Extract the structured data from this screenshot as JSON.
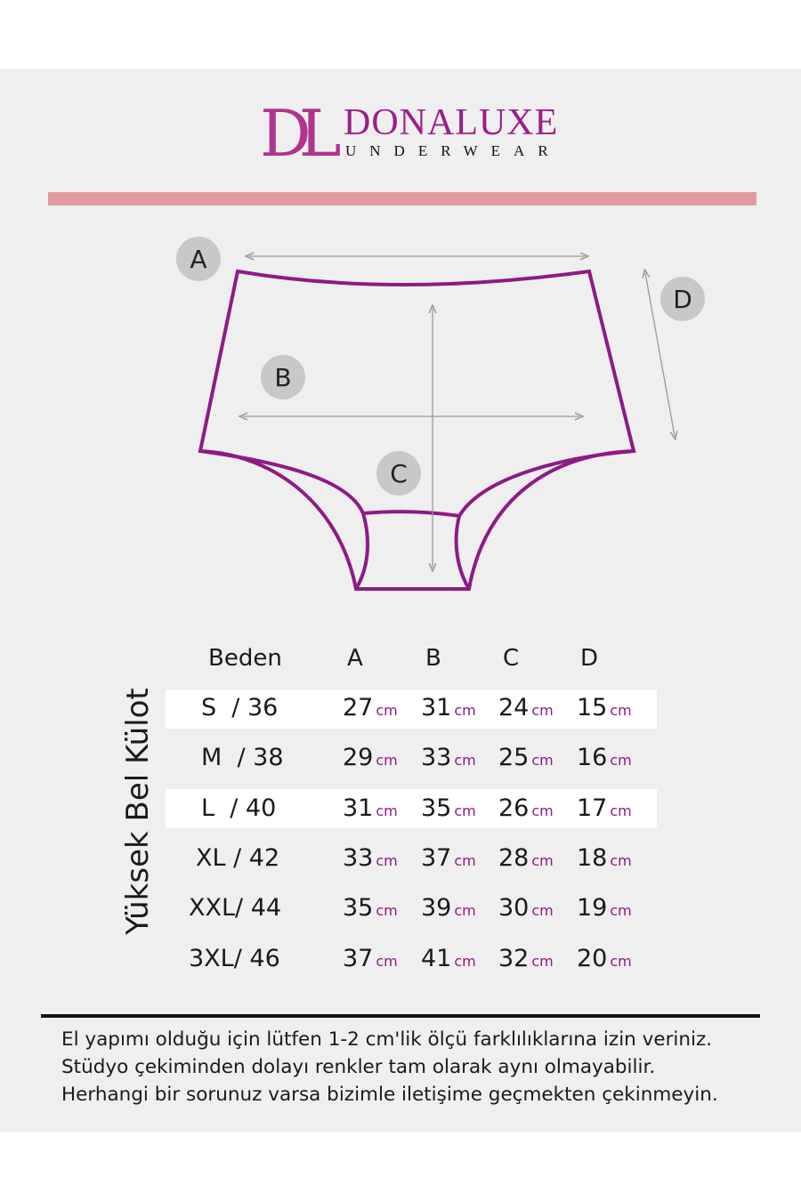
{
  "brand": {
    "monogram": "DL",
    "name": "DONALUXE",
    "tagline": "UNDERWEAR",
    "color": "#9a1f8a"
  },
  "diagram": {
    "labels": [
      "A",
      "B",
      "C",
      "D"
    ],
    "outline_color": "#8e1a85"
  },
  "table": {
    "title": "Yüksek Bel Külot",
    "headers": [
      "Beden",
      "A",
      "B",
      "C",
      "D"
    ],
    "unit": "cm",
    "rows": [
      {
        "size": "S  / 36",
        "values": [
          "27",
          "31",
          "24",
          "15"
        ]
      },
      {
        "size": "M  / 38",
        "values": [
          "29",
          "33",
          "25",
          "16"
        ]
      },
      {
        "size": "L  / 40",
        "values": [
          "31",
          "35",
          "26",
          "17"
        ]
      },
      {
        "size": "XL / 42",
        "values": [
          "33",
          "37",
          "28",
          "18"
        ]
      },
      {
        "size": "XXL/ 44",
        "values": [
          "35",
          "39",
          "30",
          "19"
        ]
      },
      {
        "size": "3XL/ 46",
        "values": [
          "37",
          "41",
          "32",
          "20"
        ]
      }
    ]
  },
  "notes": [
    "El yapımı olduğu için lütfen 1-2 cm'lik ölçü farklılıklarına izin veriniz.",
    "Stüdyo çekiminden dolayı renkler tam olarak aynı olmayabilir.",
    "Herhangi bir sorunuz varsa bizimle iletişime geçmekten çekinmeyin."
  ]
}
